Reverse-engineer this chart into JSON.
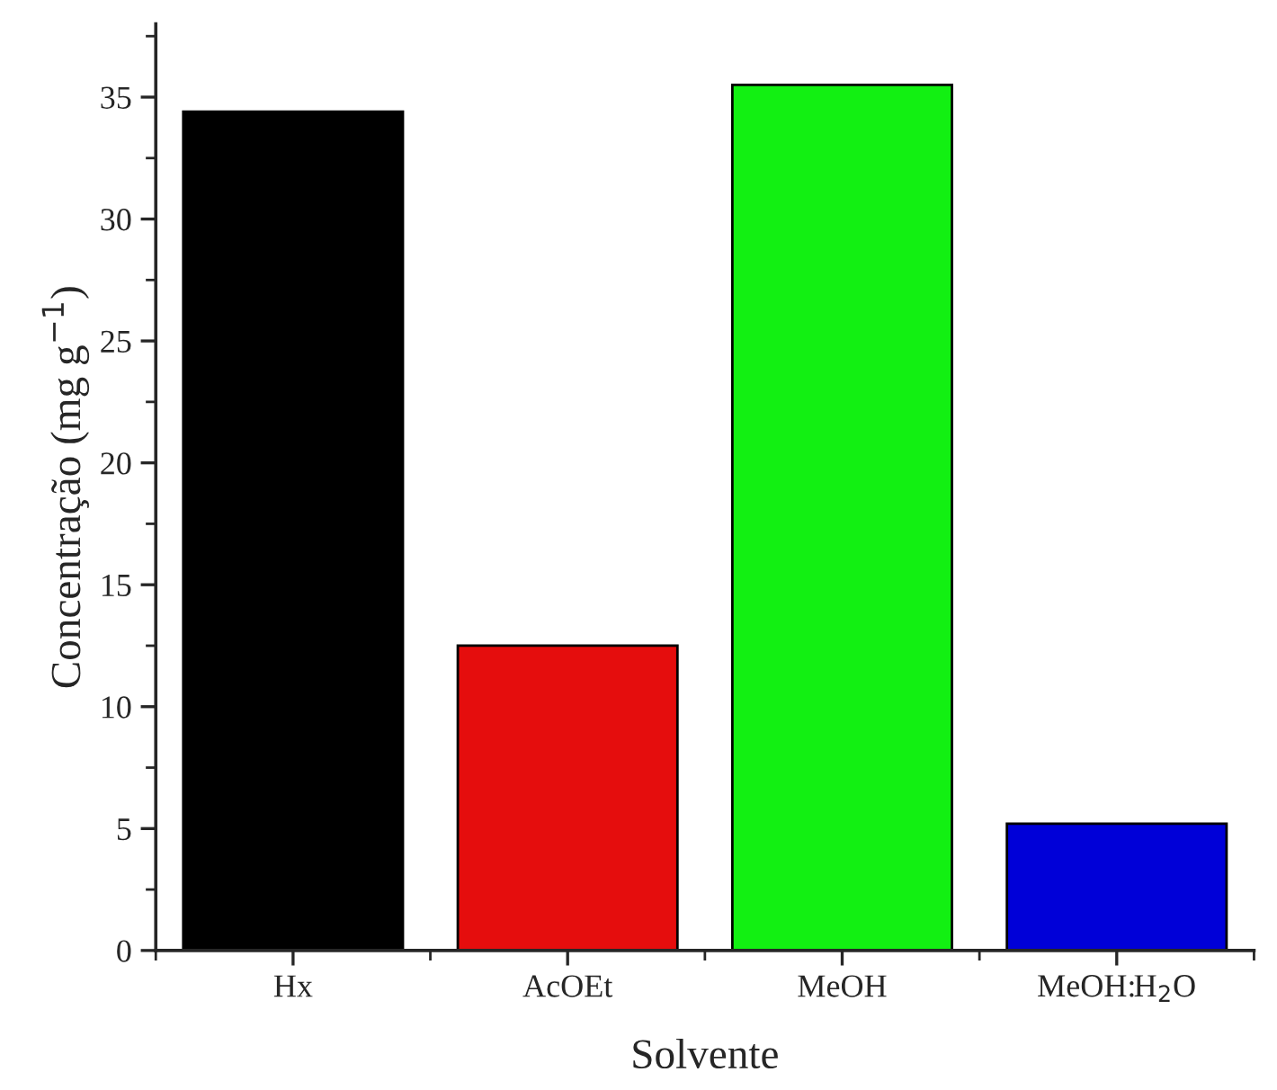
{
  "chart_data": {
    "type": "bar",
    "xlabel": "Solvente",
    "ylabel": "Concentração (mg g$^{−1}$)",
    "categories": [
      "Hx",
      "AcOEt",
      "MeOH",
      "MeOH:H$_{2}$O"
    ],
    "values": [
      34.4,
      12.5,
      35.5,
      5.2
    ],
    "colors": [
      "#000000",
      "#e50d0d",
      "#12f012",
      "#0000d8"
    ],
    "ylim": [
      0,
      38
    ],
    "yticks": [
      0,
      {
        "value": 2.5,
        "label": null
      },
      5,
      {
        "value": 7.5,
        "label": null
      },
      10,
      {
        "value": 12.5,
        "label": null
      },
      15,
      {
        "value": 17.5,
        "label": null
      },
      20,
      {
        "value": 22.5,
        "label": null
      },
      25,
      {
        "value": 27.5,
        "label": null
      },
      30,
      {
        "value": 32.5,
        "label": null
      },
      35,
      {
        "value": 37.5,
        "label": null
      }
    ],
    "grid": false,
    "legend": false
  }
}
